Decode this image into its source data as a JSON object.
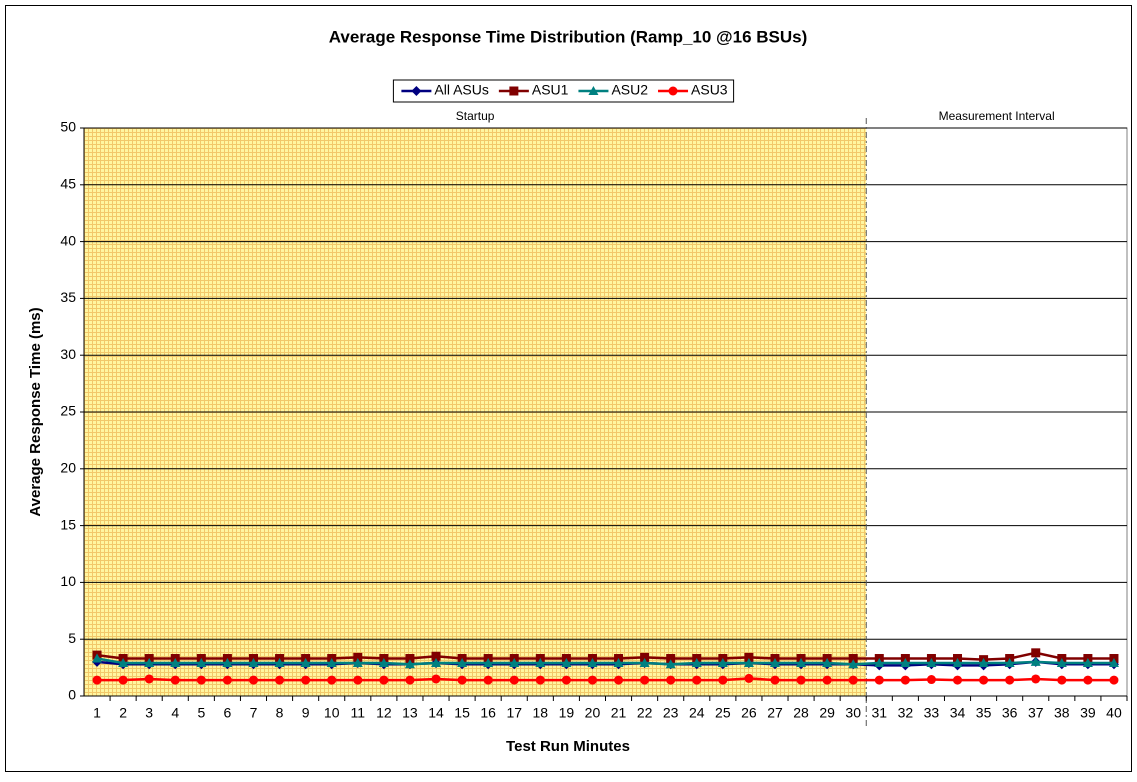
{
  "chart_data": {
    "type": "line",
    "title": "Average Response Time Distribution (Ramp_10 @16 BSUs)",
    "x_label": "Test Run Minutes",
    "y_label": "Average Response Time (ms)",
    "annotations": [
      "Startup",
      "Measurement Interval"
    ],
    "categories": [
      "1",
      "2",
      "3",
      "4",
      "5",
      "6",
      "7",
      "8",
      "9",
      "10",
      "11",
      "12",
      "13",
      "14",
      "15",
      "16",
      "17",
      "18",
      "19",
      "20",
      "21",
      "22",
      "23",
      "24",
      "25",
      "26",
      "27",
      "28",
      "29",
      "30",
      "31",
      "32",
      "33",
      "34",
      "35",
      "36",
      "37",
      "38",
      "39",
      "40"
    ],
    "series": [
      {
        "name": "All ASUs",
        "color": "#000080",
        "marker": "diamond",
        "values": [
          3.0,
          2.8,
          2.8,
          2.8,
          2.8,
          2.8,
          2.8,
          2.8,
          2.8,
          2.8,
          2.9,
          2.8,
          2.8,
          2.9,
          2.8,
          2.8,
          2.8,
          2.8,
          2.8,
          2.8,
          2.8,
          2.9,
          2.8,
          2.8,
          2.8,
          2.9,
          2.8,
          2.8,
          2.8,
          2.8,
          2.7,
          2.7,
          2.8,
          2.7,
          2.7,
          2.8,
          3.0,
          2.8,
          2.8,
          2.8
        ]
      },
      {
        "name": "ASU1",
        "color": "#800000",
        "marker": "square",
        "values": [
          3.6,
          3.3,
          3.3,
          3.3,
          3.3,
          3.3,
          3.3,
          3.3,
          3.3,
          3.3,
          3.4,
          3.3,
          3.3,
          3.5,
          3.3,
          3.3,
          3.3,
          3.3,
          3.3,
          3.3,
          3.3,
          3.4,
          3.3,
          3.3,
          3.3,
          3.4,
          3.3,
          3.3,
          3.3,
          3.3,
          3.3,
          3.3,
          3.3,
          3.3,
          3.2,
          3.3,
          3.8,
          3.3,
          3.3,
          3.3
        ]
      },
      {
        "name": "ASU2",
        "color": "#008080",
        "marker": "triangle",
        "values": [
          3.3,
          2.9,
          2.9,
          2.9,
          2.9,
          2.9,
          2.9,
          2.9,
          2.9,
          2.9,
          2.9,
          2.9,
          2.8,
          2.9,
          2.9,
          2.9,
          2.9,
          2.9,
          2.9,
          2.9,
          2.9,
          2.9,
          2.8,
          2.9,
          2.9,
          2.9,
          2.9,
          2.9,
          2.9,
          2.8,
          2.9,
          2.9,
          2.9,
          2.9,
          2.9,
          2.9,
          3.0,
          2.9,
          2.9,
          2.9
        ]
      },
      {
        "name": "ASU3",
        "color": "#ff0000",
        "marker": "circle",
        "values": [
          1.4,
          1.4,
          1.5,
          1.4,
          1.4,
          1.4,
          1.4,
          1.4,
          1.4,
          1.4,
          1.4,
          1.4,
          1.4,
          1.5,
          1.4,
          1.4,
          1.4,
          1.4,
          1.4,
          1.4,
          1.4,
          1.4,
          1.4,
          1.4,
          1.4,
          1.55,
          1.4,
          1.4,
          1.4,
          1.4,
          1.4,
          1.4,
          1.45,
          1.4,
          1.4,
          1.4,
          1.5,
          1.4,
          1.4,
          1.4
        ]
      }
    ],
    "ylim": [
      0,
      50
    ],
    "yticks": [
      0,
      5,
      10,
      15,
      20,
      25,
      30,
      35,
      40,
      45,
      50
    ],
    "grid": true,
    "legend": "top"
  }
}
